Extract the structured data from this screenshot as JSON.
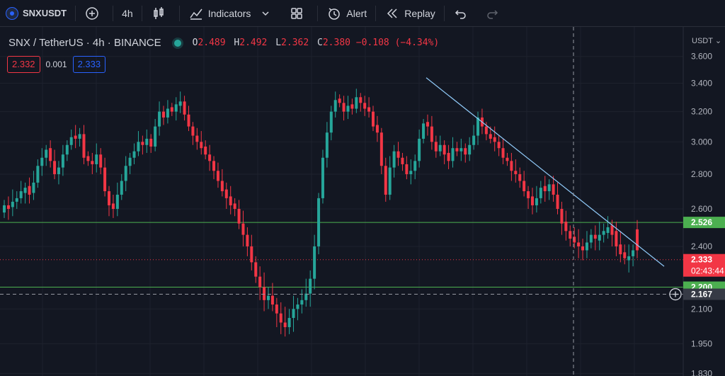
{
  "toolbar": {
    "symbol": "SNXUSDT",
    "interval": "4h",
    "indicators_label": "Indicators",
    "alert_label": "Alert",
    "replay_label": "Replay"
  },
  "legend": {
    "title": "SNX / TetherUS · 4h · BINANCE",
    "o_key": "O",
    "o_val": "2.489",
    "h_key": "H",
    "h_val": "2.492",
    "l_key": "L",
    "l_val": "2.362",
    "c_key": "C",
    "c_val": "2.380 −0.108 (−4.34%)"
  },
  "spread": {
    "sell": "2.332",
    "spread": "0.001",
    "buy": "2.333"
  },
  "price_scale": {
    "currency": "USDT"
  },
  "colors": {
    "up": "#26a69a",
    "down": "#f23645",
    "hline": "#4caf50",
    "trendline": "#90caf9",
    "bg": "#131722",
    "grid": "#1e222d"
  },
  "chart_data": {
    "type": "candlestick",
    "title": "SNX / TetherUS · 4h · BINANCE",
    "ylim": [
      1.82,
      3.72
    ],
    "scale": "log",
    "y_ticks": [
      "3.600",
      "3.400",
      "3.200",
      "3.000",
      "2.800",
      "2.600",
      "2.400",
      "2.100",
      "1.950",
      "1.830"
    ],
    "horizontal_lines": [
      2.526,
      2.2
    ],
    "trendline": {
      "from": 3.44,
      "to": 2.3
    },
    "crosshair_price": 2.167,
    "last_price": 2.333,
    "countdown": "02:43:44",
    "labels": {
      "upper_line": "2.526",
      "lower_line": "2.200",
      "crosshair": "2.167",
      "last": "2.333"
    },
    "closes": [
      2.62,
      2.6,
      2.64,
      2.66,
      2.7,
      2.72,
      2.68,
      2.75,
      2.85,
      2.9,
      2.95,
      2.88,
      2.8,
      2.84,
      2.92,
      2.98,
      3.03,
      3.02,
      3.05,
      2.9,
      2.88,
      2.86,
      2.92,
      2.84,
      2.7,
      2.62,
      2.6,
      2.68,
      2.76,
      2.85,
      2.9,
      2.94,
      3.0,
      2.98,
      3.02,
      2.97,
      3.1,
      3.2,
      3.16,
      3.22,
      3.2,
      3.25,
      3.27,
      3.18,
      3.1,
      3.04,
      3.0,
      2.96,
      2.92,
      2.88,
      2.82,
      2.76,
      2.7,
      2.66,
      2.62,
      2.6,
      2.52,
      2.46,
      2.4,
      2.32,
      2.25,
      2.2,
      2.14,
      2.16,
      2.12,
      2.08,
      2.04,
      2.02,
      2.06,
      2.1,
      2.12,
      2.14,
      2.17,
      2.24,
      2.4,
      2.66,
      2.9,
      3.06,
      3.2,
      3.28,
      3.26,
      3.2,
      3.24,
      3.22,
      3.3,
      3.26,
      3.22,
      3.2,
      3.1,
      3.06,
      2.85,
      2.68,
      2.84,
      2.94,
      2.9,
      2.86,
      2.8,
      2.82,
      2.88,
      3.02,
      3.12,
      3.1,
      3.0,
      2.94,
      2.98,
      2.92,
      2.88,
      2.96,
      2.94,
      2.96,
      2.92,
      2.98,
      3.04,
      3.16,
      3.1,
      3.05,
      3.02,
      3.0,
      2.96,
      2.9,
      2.88,
      2.82,
      2.8,
      2.76,
      2.7,
      2.66,
      2.62,
      2.66,
      2.72,
      2.7,
      2.74,
      2.68,
      2.6,
      2.52,
      2.48,
      2.44,
      2.42,
      2.4,
      2.38,
      2.42,
      2.46,
      2.44,
      2.46,
      2.48,
      2.5,
      2.46,
      2.4,
      2.36,
      2.34,
      2.35,
      2.38,
      2.38
    ],
    "opens_offset": [
      0.04,
      -0.02,
      0.03,
      0.02,
      0.04,
      0.03,
      -0.05,
      0.06,
      0.1,
      0.05,
      0.05,
      -0.08,
      -0.08,
      0.04,
      0.08,
      0.06,
      0.05,
      -0.02,
      0.03,
      -0.15,
      -0.03,
      -0.02,
      0.06,
      -0.08,
      -0.14,
      -0.08,
      -0.03,
      0.08,
      0.08,
      0.09,
      0.05,
      0.04,
      0.06,
      -0.02,
      0.04,
      -0.05,
      0.13,
      0.1,
      -0.04,
      0.06,
      -0.03,
      0.05,
      0.03,
      -0.09,
      -0.08,
      -0.06,
      -0.04,
      -0.04,
      -0.05,
      -0.04,
      -0.06,
      -0.06,
      -0.06,
      -0.05,
      -0.05,
      -0.03,
      -0.08,
      -0.06,
      -0.06,
      -0.08,
      -0.07,
      -0.05,
      -0.06,
      0.02,
      -0.04,
      -0.04,
      -0.04,
      -0.02,
      0.04,
      0.04,
      0.02,
      0.02,
      0.03,
      0.07,
      0.16,
      0.26,
      0.24,
      0.16,
      0.14,
      0.08,
      -0.03,
      -0.06,
      0.04,
      -0.03,
      0.08,
      -0.04,
      -0.04,
      -0.03,
      -0.1,
      -0.05,
      -0.21,
      -0.17,
      0.16,
      0.1,
      -0.04,
      -0.04,
      -0.06,
      0.02,
      0.06,
      0.14,
      0.1,
      -0.03,
      -0.1,
      -0.06,
      0.04,
      -0.06,
      -0.05,
      0.08,
      -0.02,
      0.02,
      -0.04,
      0.06,
      0.06,
      0.12,
      -0.06,
      -0.05,
      -0.03,
      -0.03,
      -0.04,
      -0.06,
      -0.02,
      -0.06,
      -0.02,
      -0.04,
      -0.06,
      -0.04,
      -0.05,
      0.04,
      0.06,
      -0.03,
      0.04,
      -0.06,
      -0.08,
      -0.08,
      -0.05,
      -0.04,
      -0.03,
      -0.02,
      -0.02,
      0.04,
      0.04,
      -0.02,
      0.03,
      0.02,
      0.03,
      -0.05,
      -0.08,
      -0.05,
      -0.03,
      0.02,
      0.03,
      -0.109
    ]
  }
}
